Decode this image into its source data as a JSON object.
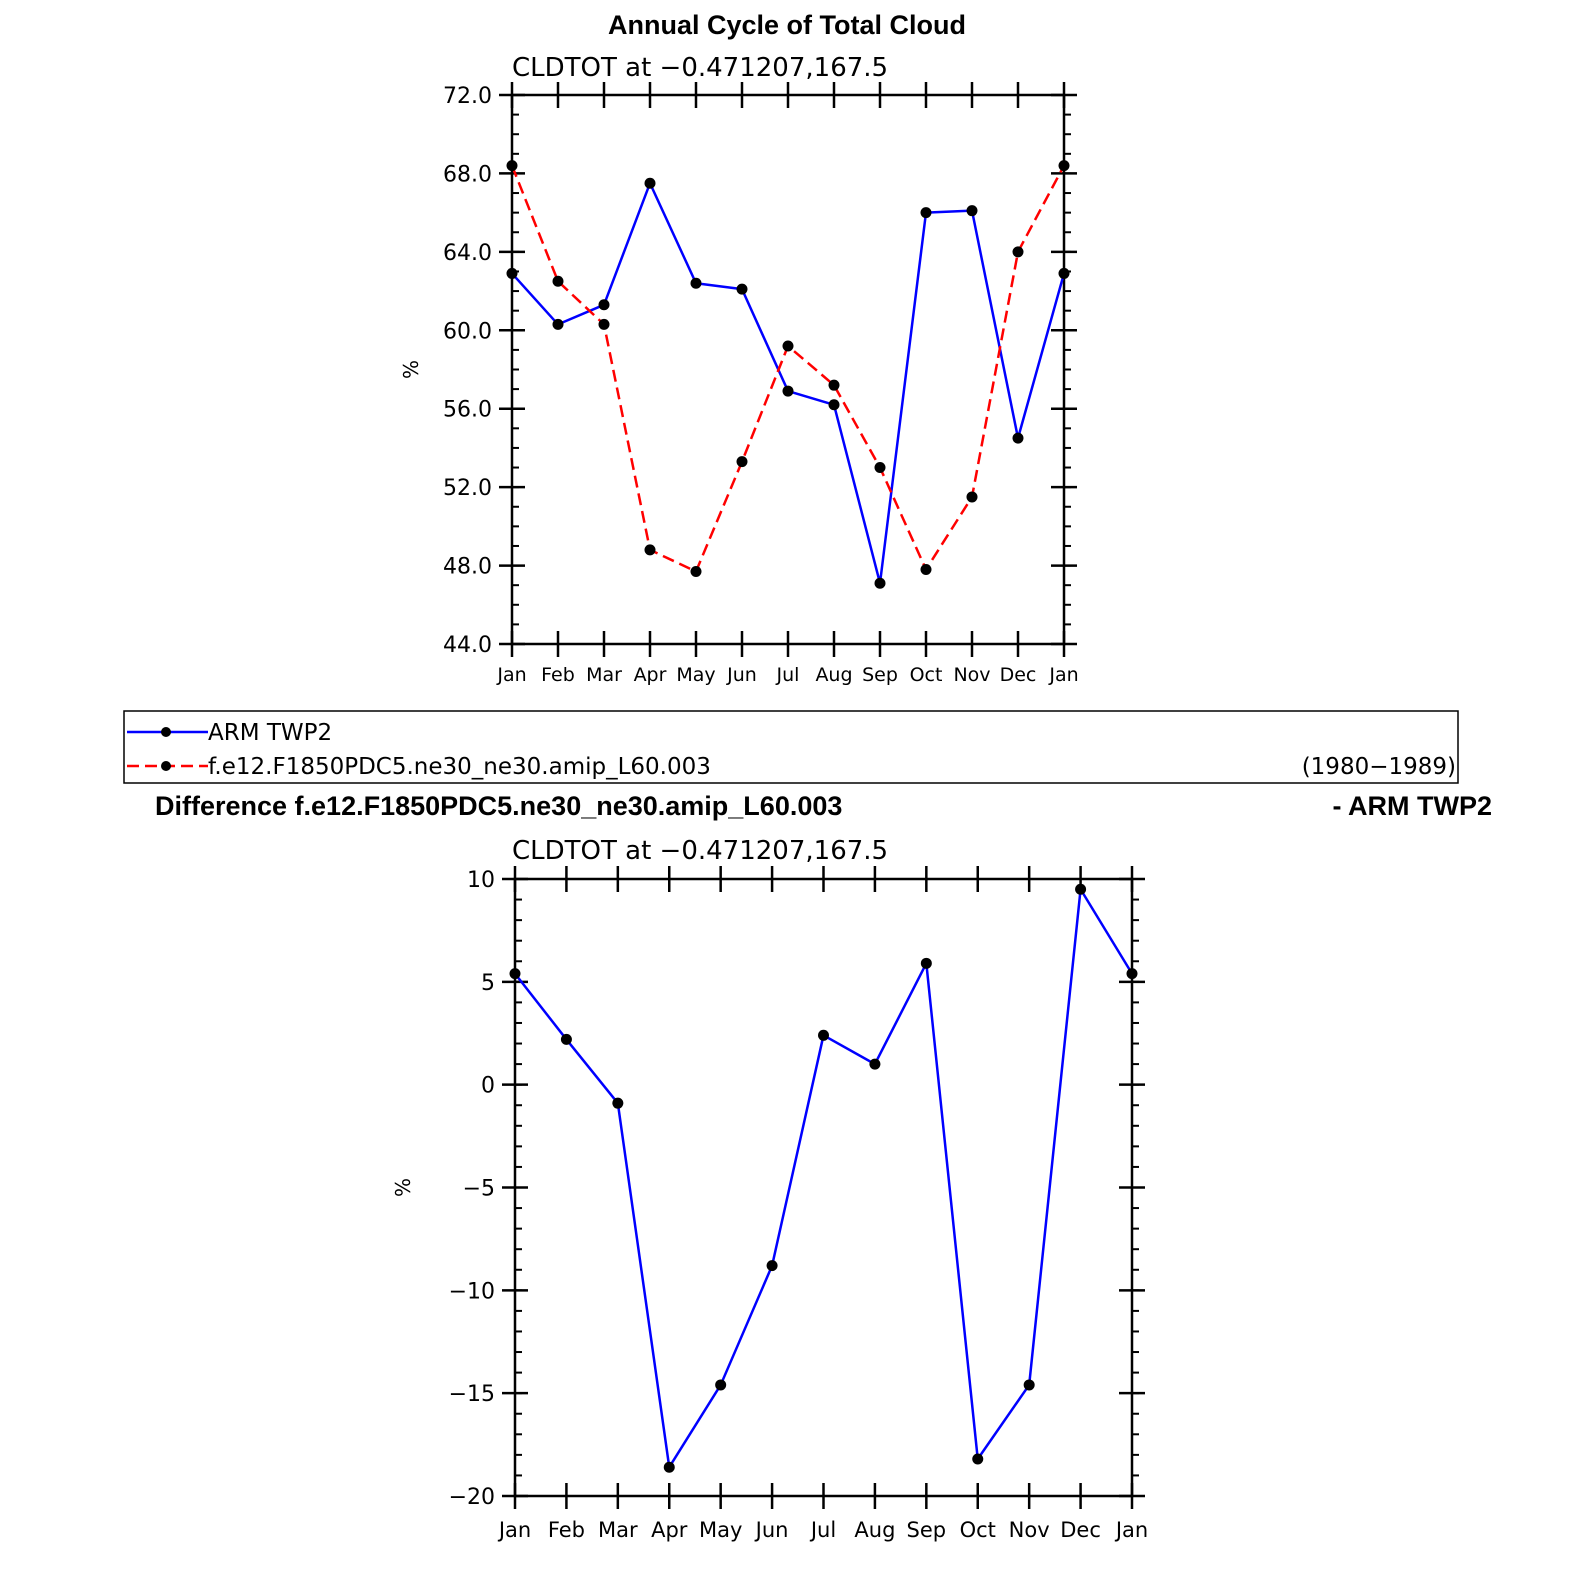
{
  "top_title": "Annual Cycle of Total Cloud",
  "diff_title_left": "Difference f.e12.F1850PDC5.ne30_ne30.amip_L60.003",
  "diff_title_right": "- ARM TWP2",
  "legend": {
    "entries": [
      {
        "label": "ARM TWP2",
        "color": "#0000ff",
        "dash": "solid"
      },
      {
        "label": "f.e12.F1850PDC5.ne30_ne30.amip_L60.003",
        "color": "#ff0000",
        "dash": "dashed"
      }
    ],
    "period": "(1980−1989)"
  },
  "chart_data": [
    {
      "type": "line",
      "subtitle": "CLDTOT at −0.471207,167.5",
      "categories": [
        "Jan",
        "Feb",
        "Mar",
        "Apr",
        "May",
        "Jun",
        "Jul",
        "Aug",
        "Sep",
        "Oct",
        "Nov",
        "Dec",
        "Jan"
      ],
      "ylabel": "%",
      "ylim": [
        44,
        72
      ],
      "yticks": [
        44,
        48,
        52,
        56,
        60,
        64,
        68,
        72
      ],
      "ytick_labels": [
        "44.0",
        "48.0",
        "52.0",
        "56.0",
        "60.0",
        "64.0",
        "68.0",
        "72.0"
      ],
      "series": [
        {
          "name": "ARM TWP2",
          "color": "#0000ff",
          "dash": "solid",
          "values": [
            62.9,
            60.3,
            61.3,
            67.5,
            62.4,
            62.1,
            56.9,
            56.2,
            47.1,
            66.0,
            66.1,
            54.5,
            62.9
          ]
        },
        {
          "name": "f.e12.F1850PDC5.ne30_ne30.amip_L60.003",
          "color": "#ff0000",
          "dash": "dashed",
          "values": [
            68.4,
            62.5,
            60.3,
            48.8,
            47.7,
            53.3,
            59.2,
            57.2,
            53.0,
            47.8,
            51.5,
            64.0,
            68.4
          ]
        }
      ]
    },
    {
      "type": "line",
      "subtitle": "CLDTOT at −0.471207,167.5",
      "categories": [
        "Jan",
        "Feb",
        "Mar",
        "Apr",
        "May",
        "Jun",
        "Jul",
        "Aug",
        "Sep",
        "Oct",
        "Nov",
        "Dec",
        "Jan"
      ],
      "ylabel": "%",
      "ylim": [
        -20,
        10
      ],
      "yticks": [
        -20,
        -15,
        -10,
        -5,
        0,
        5,
        10
      ],
      "ytick_labels": [
        "−20",
        "−15",
        "−10",
        "−5",
        "0",
        "5",
        "10"
      ],
      "series": [
        {
          "color": "#0000ff",
          "dash": "solid",
          "values": [
            5.4,
            2.2,
            -0.9,
            -18.6,
            -14.6,
            -8.8,
            2.4,
            1.0,
            5.9,
            -18.2,
            -14.6,
            9.5,
            5.4
          ]
        }
      ]
    }
  ]
}
